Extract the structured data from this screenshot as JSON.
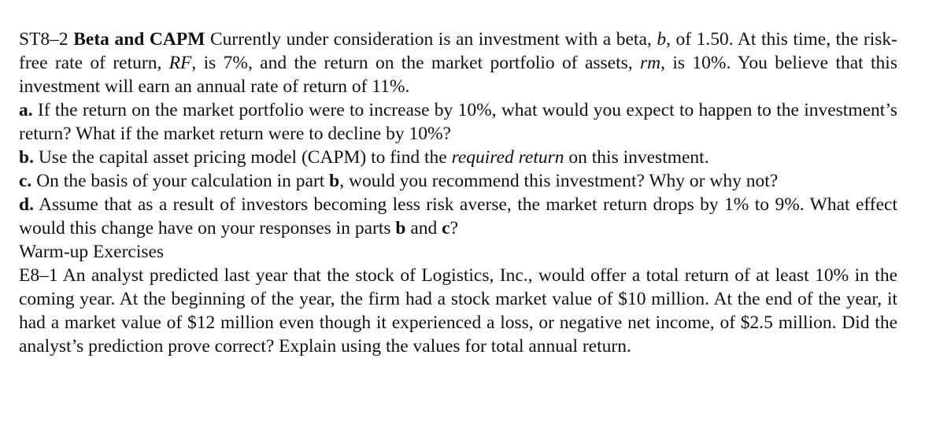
{
  "st8_2": {
    "number": "ST8–2",
    "title": "Beta and CAPM",
    "t1": " Currently under consideration is an investment with a beta, ",
    "beta_var": "b",
    "t2": ", of 1.50. At this time, the risk-free rate of return, ",
    "rf_var": "RF",
    "t3": ", is 7%, and the return on the market portfolio of assets, ",
    "rm_var": "rm",
    "t4": ", is 10%. You believe that this investment will earn an annual rate of return of 11%."
  },
  "part_a": {
    "label": "a.",
    "text": " If the return on the market portfolio were to increase by 10%, what would you expect to happen to the investment’s return? What if the market return were to decline by 10%?"
  },
  "part_b": {
    "label": "b.",
    "t1": " Use the capital asset pricing model (CAPM) to find the ",
    "emph": "required return",
    "t2": " on this investment."
  },
  "part_c": {
    "label": "c.",
    "t1": " On the basis of your calculation in part ",
    "ref": "b",
    "t2": ", would you recommend this investment? Why or why not?"
  },
  "part_d": {
    "label": "d.",
    "t1": " Assume that as a result of investors becoming less risk averse, the market return drops by 1% to 9%. What effect would this change have on your responses in parts ",
    "ref_b": "b",
    "t2": " and ",
    "ref_c": "c",
    "t3": "?"
  },
  "section_heading": "Warm-up Exercises",
  "e8_1": {
    "text": "E8–1 An analyst predicted last year that the stock of Logistics, Inc., would offer a total return of at least 10% in the coming year. At the beginning of the year, the firm had a stock market value of $10 million. At the end of the year, it had a market value of $12 million even though it experienced a loss, or negative net income, of $2.5 million. Did the analyst’s prediction prove correct? Explain using the values for total annual return."
  }
}
